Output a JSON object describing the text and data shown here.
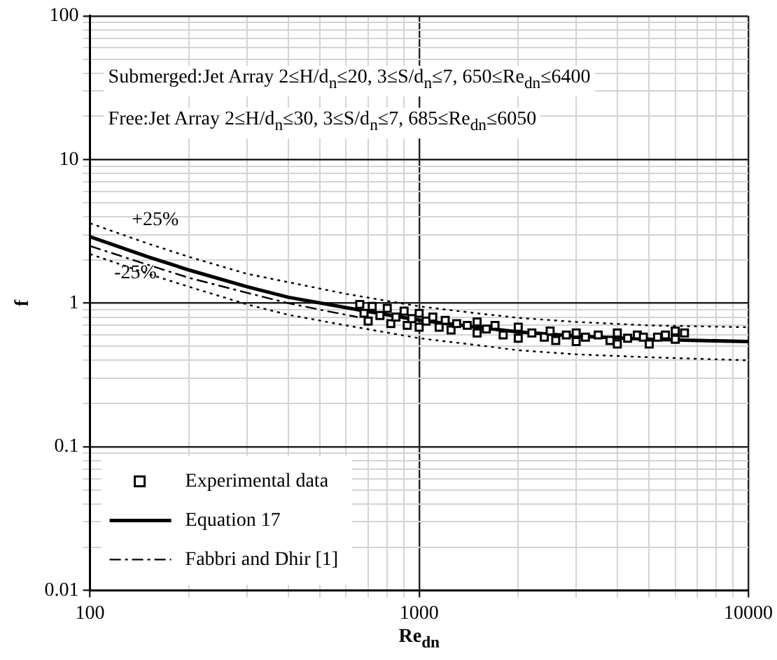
{
  "chart_data": {
    "type": "scatter",
    "xlabel": "Re$_{dn}$",
    "ylabel": "f",
    "log": "xy",
    "xlim": [
      100,
      10000
    ],
    "ylim": [
      0.01,
      100
    ],
    "xticks": [
      100,
      {
        "value": 200,
        "label": null
      },
      {
        "value": 300,
        "label": null
      },
      {
        "value": 400,
        "label": null
      },
      {
        "value": 500,
        "label": null
      },
      {
        "value": 600,
        "label": null
      },
      {
        "value": 700,
        "label": null
      },
      {
        "value": 800,
        "label": null
      },
      {
        "value": 900,
        "label": null
      },
      1000,
      {
        "value": 2000,
        "label": null
      },
      {
        "value": 3000,
        "label": null
      },
      {
        "value": 4000,
        "label": null
      },
      {
        "value": 5000,
        "label": null
      },
      {
        "value": 6000,
        "label": null
      },
      {
        "value": 7000,
        "label": null
      },
      {
        "value": 8000,
        "label": null
      },
      {
        "value": 9000,
        "label": null
      },
      10000
    ],
    "yticks": [
      0.01,
      {
        "value": 0.02,
        "label": null
      },
      {
        "value": 0.03,
        "label": null
      },
      {
        "value": 0.04,
        "label": null
      },
      {
        "value": 0.05,
        "label": null
      },
      {
        "value": 0.06,
        "label": null
      },
      {
        "value": 0.07,
        "label": null
      },
      {
        "value": 0.08,
        "label": null
      },
      {
        "value": 0.09,
        "label": null
      },
      0.1,
      {
        "value": 0.2,
        "label": null
      },
      {
        "value": 0.3,
        "label": null
      },
      {
        "value": 0.4,
        "label": null
      },
      {
        "value": 0.5,
        "label": null
      },
      {
        "value": 0.6,
        "label": null
      },
      {
        "value": 0.7,
        "label": null
      },
      {
        "value": 0.8,
        "label": null
      },
      {
        "value": 0.9,
        "label": null
      },
      1,
      {
        "value": 2,
        "label": null
      },
      {
        "value": 3,
        "label": null
      },
      {
        "value": 4,
        "label": null
      },
      {
        "value": 5,
        "label": null
      },
      {
        "value": 6,
        "label": null
      },
      {
        "value": 7,
        "label": null
      },
      {
        "value": 8,
        "label": null
      },
      {
        "value": 9,
        "label": null
      },
      10,
      {
        "value": 20,
        "label": null
      },
      {
        "value": 30,
        "label": null
      },
      {
        "value": 40,
        "label": null
      },
      {
        "value": 50,
        "label": null
      },
      {
        "value": 60,
        "label": null
      },
      {
        "value": 70,
        "label": null
      },
      {
        "value": 80,
        "label": null
      },
      {
        "value": 90,
        "label": null
      },
      100
    ],
    "grid": true,
    "legend": "bottom left",
    "annotations": [
      "Submerged:Jet Array  2≤H/d$_{n}$≤20, 3≤S/d$_{n}$≤7, 650≤Re$_{dn}$≤6400",
      "Free:Jet Array 2≤H/d$_{n}$≤30, 3≤S/d$_{n}$≤7, 685≤Re$_{dn}$≤6050",
      {
        "text": "+25%",
        "x": 130,
        "y": 3.0
      },
      {
        "text": "-25%",
        "x": 115,
        "y": 1.98
      }
    ],
    "series": [
      {
        "name": "Experimental data",
        "marker": "square",
        "color": "#000000",
        "x": [
          660,
          680,
          700,
          720,
          760,
          800,
          820,
          850,
          900,
          920,
          950,
          1000,
          1000,
          1050,
          1100,
          1150,
          1200,
          1250,
          1300,
          1400,
          1500,
          1500,
          1600,
          1700,
          1800,
          2000,
          2000,
          2200,
          2400,
          2500,
          2600,
          2800,
          3000,
          3000,
          3200,
          3500,
          3800,
          4000,
          4000,
          4300,
          4600,
          4800,
          5000,
          5300,
          5600,
          6000,
          6000,
          6400
        ],
        "values": [
          0.98,
          0.85,
          0.75,
          0.95,
          0.82,
          0.92,
          0.72,
          0.8,
          0.88,
          0.7,
          0.78,
          0.85,
          0.68,
          0.75,
          0.8,
          0.68,
          0.76,
          0.65,
          0.72,
          0.7,
          0.74,
          0.62,
          0.66,
          0.7,
          0.6,
          0.68,
          0.57,
          0.62,
          0.58,
          0.64,
          0.55,
          0.6,
          0.62,
          0.54,
          0.58,
          0.6,
          0.55,
          0.62,
          0.52,
          0.57,
          0.6,
          0.58,
          0.52,
          0.58,
          0.6,
          0.64,
          0.56,
          0.62
        ]
      },
      {
        "name": "Equation 17",
        "type": "line",
        "marker": "none",
        "line_style": "solid",
        "color": "#000000",
        "x": [
          100,
          150,
          200,
          300,
          400,
          600,
          1000,
          1500,
          2000,
          3000,
          5000,
          7000,
          10000
        ],
        "values": [
          2.9,
          2.1,
          1.7,
          1.3,
          1.1,
          0.93,
          0.76,
          0.68,
          0.63,
          0.59,
          0.56,
          0.55,
          0.54
        ]
      },
      {
        "name": "Fabbri and Dhir [1]",
        "type": "line",
        "marker": "none",
        "line_style": "dashed",
        "color": "#000000",
        "x": [
          100,
          150,
          200,
          300,
          400,
          500,
          650
        ],
        "values": [
          2.5,
          1.85,
          1.5,
          1.18,
          1.0,
          0.9,
          0.8
        ]
      },
      {
        "type": "line",
        "marker": "none",
        "line_style": "dotted",
        "color": "#000000",
        "x": [
          100,
          150,
          200,
          300,
          400,
          600,
          1000,
          1500,
          2000,
          3000,
          5000,
          7000,
          10000
        ],
        "values": [
          3.6,
          2.6,
          2.1,
          1.6,
          1.4,
          1.16,
          0.95,
          0.85,
          0.79,
          0.74,
          0.7,
          0.69,
          0.68
        ]
      },
      {
        "type": "line",
        "marker": "none",
        "line_style": "dotted",
        "color": "#000000",
        "x": [
          100,
          150,
          200,
          300,
          400,
          600,
          1000,
          1500,
          2000,
          3000,
          5000,
          7000,
          10000
        ],
        "values": [
          2.2,
          1.6,
          1.3,
          0.98,
          0.83,
          0.7,
          0.57,
          0.51,
          0.47,
          0.44,
          0.42,
          0.41,
          0.4
        ]
      }
    ]
  }
}
